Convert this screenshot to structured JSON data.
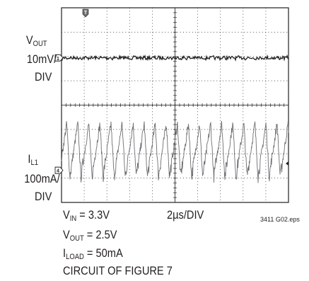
{
  "chart_data": {
    "type": "line",
    "grid": true,
    "divisions": {
      "x": 10,
      "y": 8
    },
    "series": [
      {
        "color": "#231f20",
        "values_div": {
          "offset": 0,
          "ripple": 0.07
        }
      },
      {
        "color": "#6d6e71",
        "values_div": {
          "offset": 0,
          "periods": 20.5,
          "valley": -0.3,
          "peak": 1.9
        }
      }
    ]
  },
  "channels": [
    {
      "name_main": "V",
      "name_sub": "OUT",
      "scale_line1": "10mV/",
      "scale_line2": "DIV",
      "marker": "1"
    },
    {
      "name_main": "I",
      "name_sub": "L1",
      "scale_line1": "100mA/",
      "scale_line2": "DIV",
      "marker": "4"
    }
  ],
  "trigger_marker": "T",
  "timebase": "2µs/DIV",
  "conditions": [
    {
      "main": "V",
      "sub": "IN",
      "rest": " = 3.3V"
    },
    {
      "main": "V",
      "sub": "OUT",
      "rest": " = 2.5V"
    },
    {
      "main": "I",
      "sub": "LOAD",
      "rest": " = 50mA"
    },
    {
      "main": "CIRCUIT OF FIGURE 7",
      "sub": "",
      "rest": ""
    }
  ],
  "figure_id": "3411 G02.eps"
}
